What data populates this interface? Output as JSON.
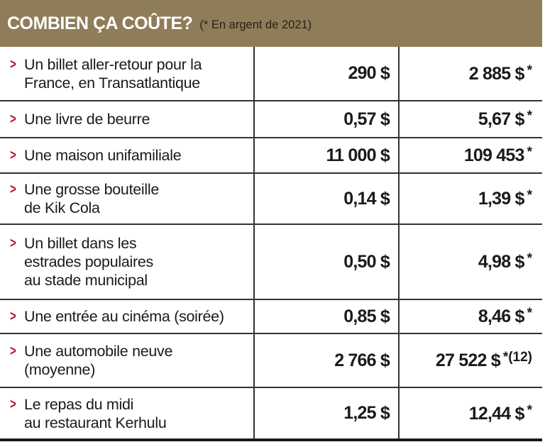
{
  "header": {
    "title": "COMBIEN ÇA COÛTE?",
    "note": "(* En argent de 2021)"
  },
  "rows": [
    {
      "label": "Un billet aller-retour pour la\nFrance, en Transatlantique",
      "price": "290 $",
      "price_2021": "2 885 $",
      "mark": "*"
    },
    {
      "label": "Une livre de beurre",
      "price": "0,57 $",
      "price_2021": "5,67 $",
      "mark": "*"
    },
    {
      "label": "Une maison unifamiliale",
      "price": "11 000 $",
      "price_2021": "109 453",
      "mark": "*"
    },
    {
      "label": "Une grosse bouteille\nde Kik Cola",
      "price": "0,14 $",
      "price_2021": "1,39 $",
      "mark": "*"
    },
    {
      "label": "Un billet dans les\nestrades populaires\nau stade municipal",
      "price": "0,50 $",
      "price_2021": "4,98 $",
      "mark": "*"
    },
    {
      "label": "Une entrée au cinéma (soirée)",
      "price": "0,85 $",
      "price_2021": "8,46 $",
      "mark": "*"
    },
    {
      "label": "Une automobile neuve\n(moyenne)",
      "price": "2 766 $",
      "price_2021": "27 522 $",
      "mark": "*(12)"
    },
    {
      "label": "Le repas du midi\nau restaurant Kerhulu",
      "price": "1,25 $",
      "price_2021": "12,44 $",
      "mark": "*"
    }
  ],
  "colors": {
    "header_bg": "#8f7c59",
    "chevron": "#b5122b"
  }
}
